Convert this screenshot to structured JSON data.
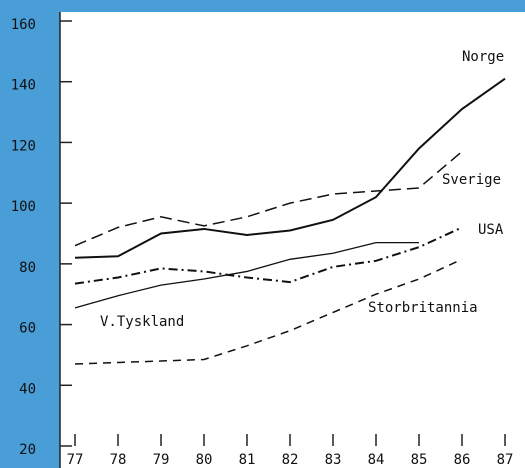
{
  "chart_data": {
    "type": "line",
    "categories": [
      "77",
      "78",
      "79",
      "80",
      "81",
      "82",
      "83",
      "84",
      "85",
      "86",
      "87"
    ],
    "series": [
      {
        "name": "Norge",
        "color": "#111111",
        "values": [
          82,
          82.5,
          90,
          91.5,
          89.5,
          91,
          94.5,
          102,
          118,
          131,
          141
        ]
      },
      {
        "name": "Sverige",
        "color": "#111111",
        "values": [
          86,
          92,
          95.5,
          92.5,
          95.5,
          100,
          103,
          104,
          105,
          117,
          null
        ]
      },
      {
        "name": "USA",
        "color": "#111111",
        "values": [
          73.5,
          75.5,
          78.5,
          77.5,
          75.5,
          74,
          79,
          81,
          85.5,
          92,
          null
        ]
      },
      {
        "name": "V.Tyskland",
        "color": "#111111",
        "values": [
          65.5,
          69.5,
          73,
          75,
          77.5,
          81.5,
          83.5,
          87,
          87,
          null,
          null
        ]
      },
      {
        "name": "Storbritannia",
        "color": "#111111",
        "values": [
          47,
          47.5,
          48,
          48.5,
          53,
          58,
          64,
          70,
          75,
          81.5,
          null
        ]
      }
    ],
    "ylim": [
      20,
      160
    ],
    "yticks": [
      20,
      40,
      60,
      80,
      100,
      120,
      140,
      160
    ]
  }
}
